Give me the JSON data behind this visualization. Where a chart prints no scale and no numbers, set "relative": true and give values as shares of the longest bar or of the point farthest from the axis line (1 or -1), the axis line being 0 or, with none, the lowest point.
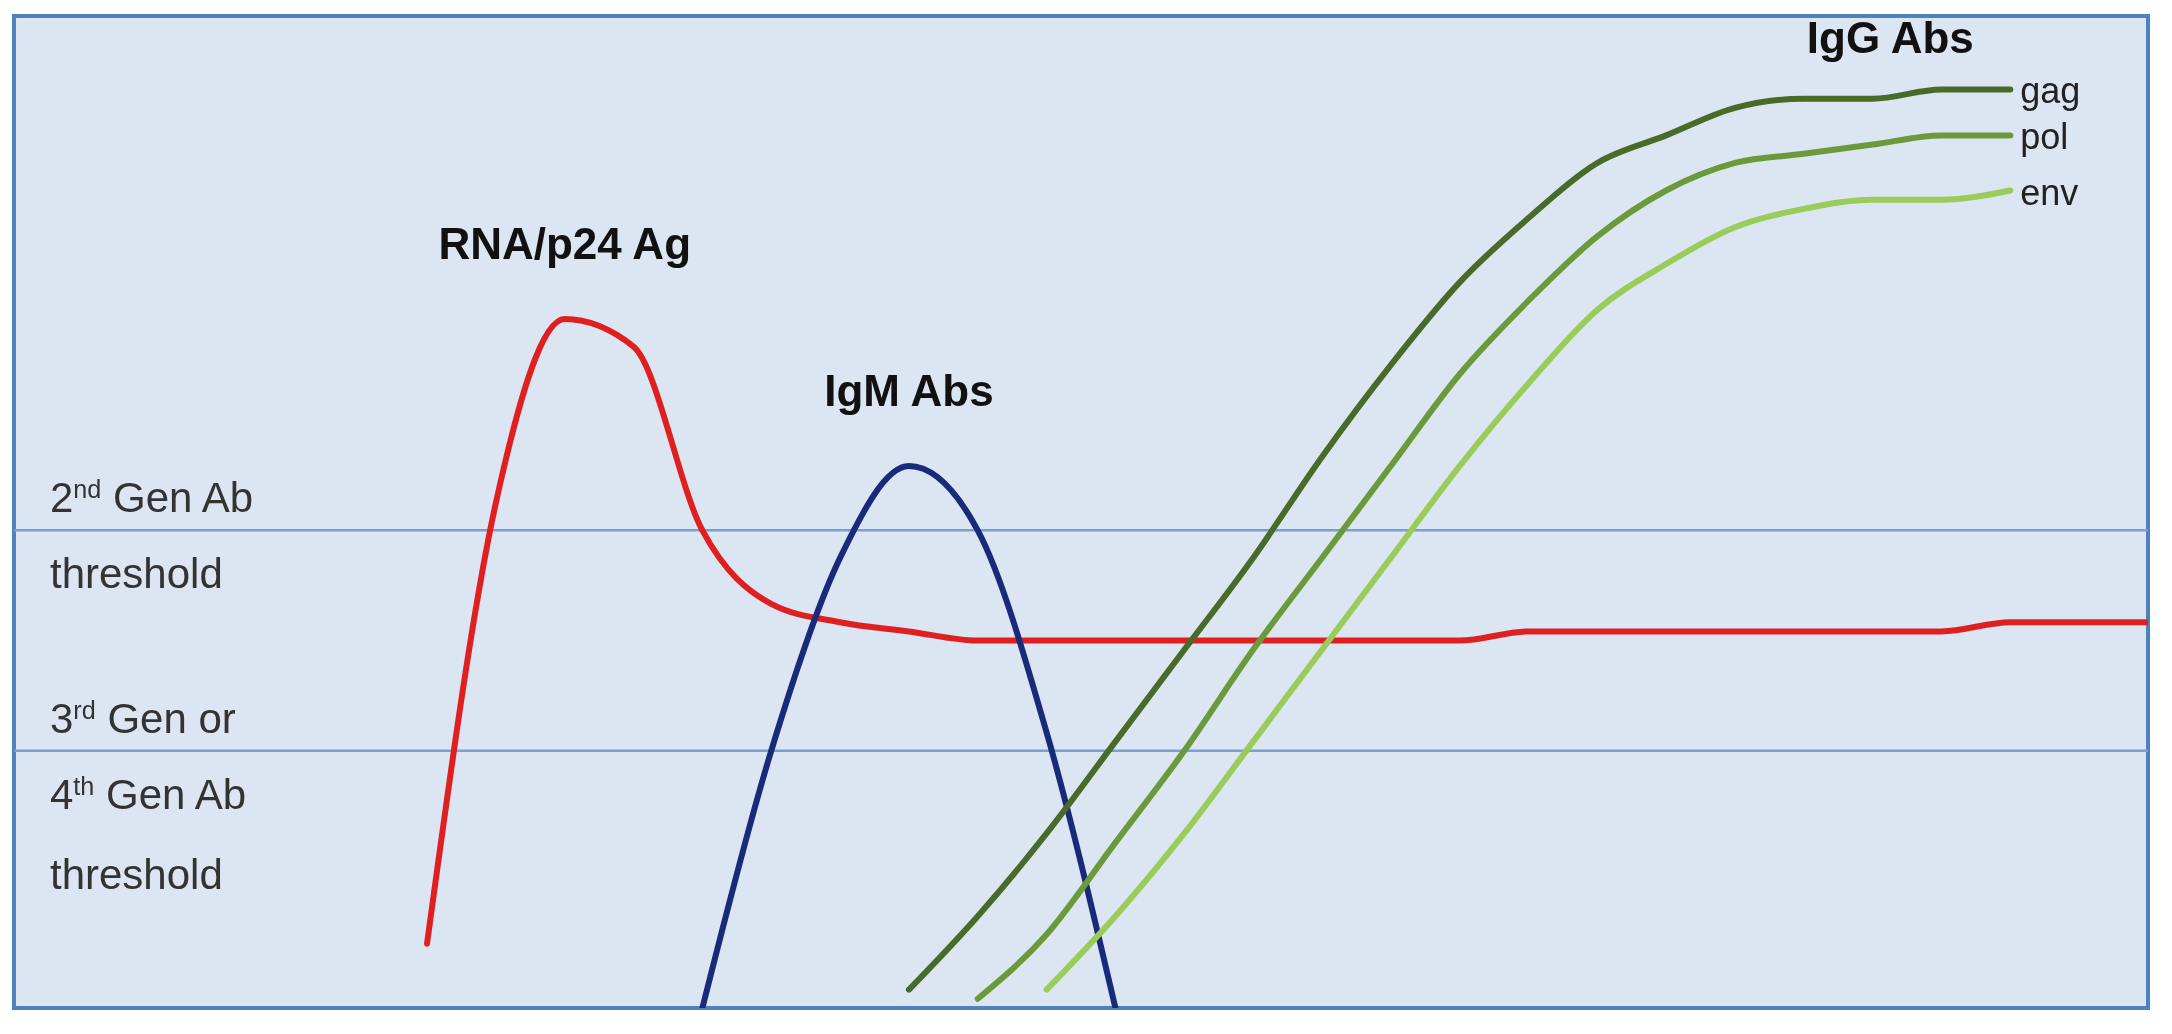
{
  "chart_data": {
    "type": "line",
    "relative": true,
    "categories": [
      null,
      null,
      null,
      null,
      null,
      null,
      null,
      null,
      null,
      null,
      null,
      null,
      null,
      null,
      null,
      null,
      null,
      null,
      null,
      null,
      null,
      null,
      null,
      null,
      null,
      null,
      null,
      null,
      null,
      null,
      null,
      null
    ],
    "series": [
      {
        "name": "RNA/p24 Ag",
        "color": "#e02020",
        "values": [
          null,
          null,
          null,
          null,
          null,
          null,
          0.07,
          0.55,
          0.75,
          0.72,
          0.52,
          0.44,
          0.42,
          0.41,
          0.4,
          0.4,
          0.4,
          0.4,
          0.4,
          0.4,
          0.4,
          0.4,
          0.41,
          0.41,
          0.41,
          0.41,
          0.41,
          0.41,
          0.41,
          0.42,
          0.42,
          0.42
        ]
      },
      {
        "name": "IgM Abs",
        "color": "#1a2a7a",
        "values": [
          null,
          null,
          null,
          null,
          null,
          null,
          null,
          null,
          null,
          null,
          0,
          0.28,
          0.49,
          0.59,
          0.52,
          0.3,
          0,
          null,
          null,
          null,
          null,
          null,
          null,
          null,
          null,
          null,
          null,
          null,
          null,
          null,
          null,
          null
        ]
      },
      {
        "name": "gag",
        "color": "#4a6a2a",
        "values": [
          null,
          null,
          null,
          null,
          null,
          null,
          null,
          null,
          null,
          null,
          null,
          null,
          null,
          0.02,
          0.1,
          0.19,
          0.29,
          0.39,
          0.49,
          0.6,
          0.7,
          0.79,
          0.86,
          0.92,
          0.95,
          0.98,
          0.99,
          0.99,
          1,
          1,
          null,
          null
        ]
      },
      {
        "name": "pol",
        "color": "#6a9a3a",
        "values": [
          null,
          null,
          null,
          null,
          null,
          null,
          null,
          null,
          null,
          null,
          null,
          null,
          null,
          null,
          0.01,
          0.08,
          0.18,
          0.28,
          0.39,
          0.49,
          0.59,
          0.69,
          0.77,
          0.84,
          0.89,
          0.92,
          0.93,
          0.94,
          0.95,
          0.95,
          null,
          null
        ]
      },
      {
        "name": "env",
        "color": "#9acc5a",
        "values": [
          null,
          null,
          null,
          null,
          null,
          null,
          null,
          null,
          null,
          null,
          null,
          null,
          null,
          null,
          null,
          0.02,
          0.1,
          0.19,
          0.29,
          0.39,
          0.49,
          0.59,
          0.68,
          0.76,
          0.81,
          0.85,
          0.87,
          0.88,
          0.88,
          0.89,
          null,
          null
        ]
      }
    ],
    "ref_lines": [
      {
        "axis": "y",
        "value": 0.52,
        "label": "2$^{nd}$ Gen Ab threshold",
        "color": "#7aa0d0"
      },
      {
        "axis": "y",
        "value": 0.28,
        "label": "3$^{rd}$ Gen or 4$^{th}$ Gen Ab threshold",
        "color": "#7aa0d0"
      }
    ],
    "annotations": [
      "IgG Abs"
    ]
  }
}
